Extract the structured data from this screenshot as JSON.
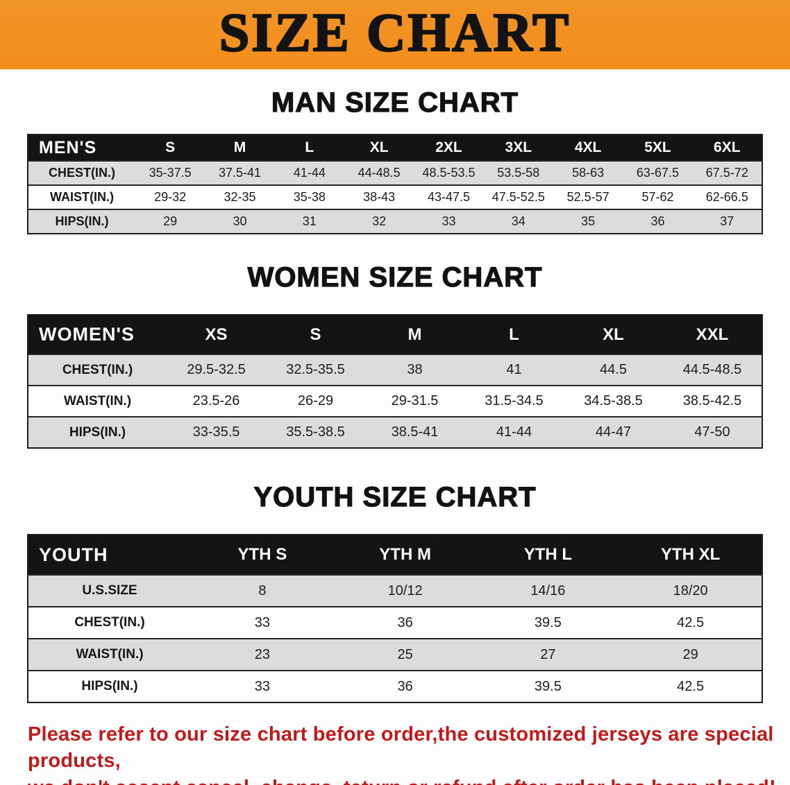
{
  "banner": {
    "title": "SIZE CHART",
    "bg_color": "#F28E1C"
  },
  "sections": [
    {
      "id": "men",
      "heading": "MAN SIZE CHART",
      "table": {
        "header": [
          "MEN'S",
          "S",
          "M",
          "L",
          "XL",
          "2XL",
          "3XL",
          "4XL",
          "5XL",
          "6XL"
        ],
        "rows": [
          [
            "CHEST(IN.)",
            "35-37.5",
            "37.5-41",
            "41-44",
            "44-48.5",
            "48.5-53.5",
            "53.5-58",
            "58-63",
            "63-67.5",
            "67.5-72"
          ],
          [
            "WAIST(IN.)",
            "29-32",
            "32-35",
            "35-38",
            "38-43",
            "43-47.5",
            "47.5-52.5",
            "52.5-57",
            "57-62",
            "62-66.5"
          ],
          [
            "HIPS(IN.)",
            "29",
            "30",
            "31",
            "32",
            "33",
            "34",
            "35",
            "36",
            "37"
          ]
        ]
      }
    },
    {
      "id": "women",
      "heading": "WOMEN SIZE CHART",
      "table": {
        "header": [
          "WOMEN'S",
          "XS",
          "S",
          "M",
          "L",
          "XL",
          "XXL"
        ],
        "rows": [
          [
            "CHEST(IN.)",
            "29.5-32.5",
            "32.5-35.5",
            "38",
            "41",
            "44.5",
            "44.5-48.5"
          ],
          [
            "WAIST(IN.)",
            "23.5-26",
            "26-29",
            "29-31.5",
            "31.5-34.5",
            "34.5-38.5",
            "38.5-42.5"
          ],
          [
            "HIPS(IN.)",
            "33-35.5",
            "35.5-38.5",
            "38.5-41",
            "41-44",
            "44-47",
            "47-50"
          ]
        ]
      }
    },
    {
      "id": "youth",
      "heading": "YOUTH SIZE CHART",
      "table": {
        "header": [
          "YOUTH",
          "YTH S",
          "YTH M",
          "YTH L",
          "YTH XL"
        ],
        "rows": [
          [
            "U.S.SIZE",
            "8",
            "10/12",
            "14/16",
            "18/20"
          ],
          [
            "CHEST(IN.)",
            "33",
            "36",
            "39.5",
            "42.5"
          ],
          [
            "WAIST(IN.)",
            "23",
            "25",
            "27",
            "29"
          ],
          [
            "HIPS(IN.)",
            "33",
            "36",
            "39.5",
            "42.5"
          ]
        ]
      }
    }
  ],
  "notice": {
    "lines": [
      "Please refer to our size chart before order,the customized jerseys are special products,",
      "we don't accept cancel, change, teturn or refund after order has been placed!"
    ],
    "color": "#C01A1A"
  }
}
